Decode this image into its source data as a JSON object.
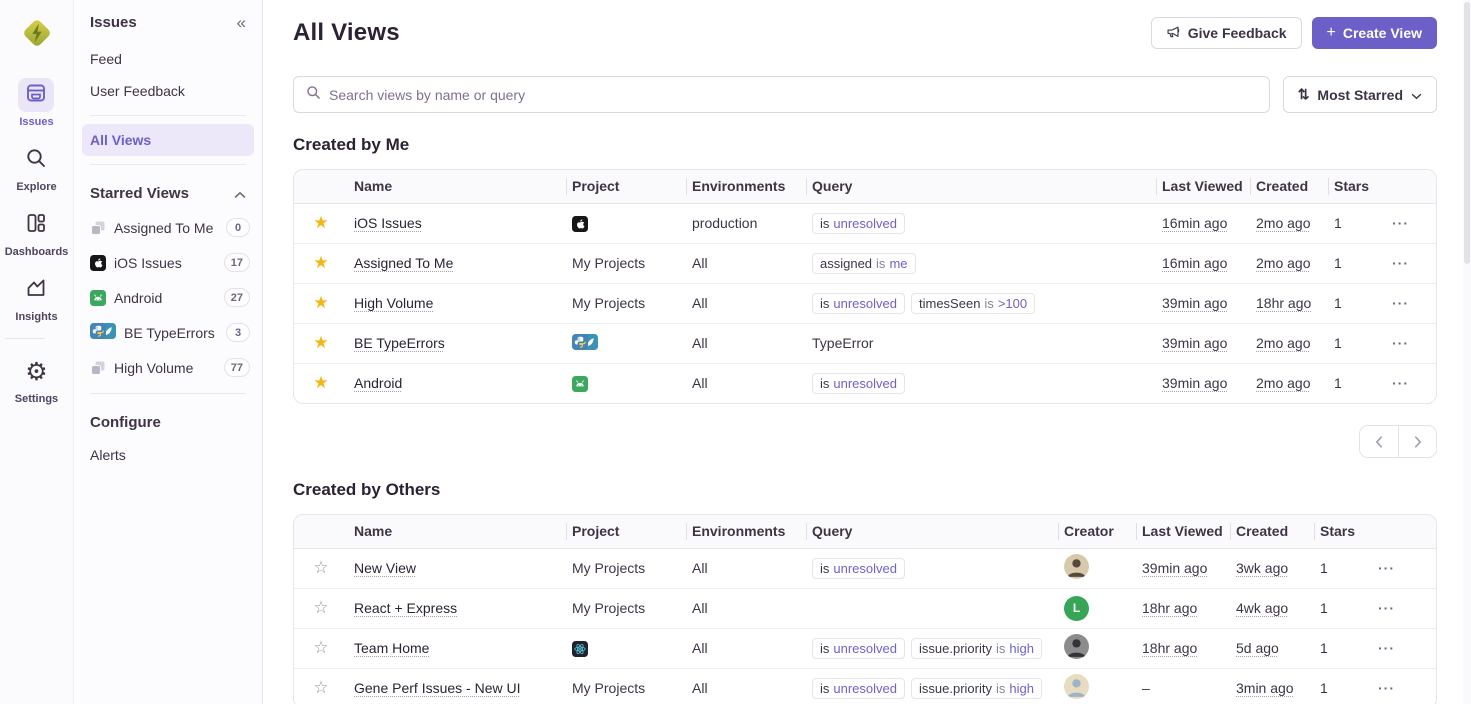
{
  "icons": {
    "collapse": "«",
    "sort": "⇅",
    "star_filled": "★",
    "star_empty": "☆",
    "more": "···",
    "plus": "+",
    "gear": "⚙"
  },
  "colors": {
    "accent": "#6C5FC7",
    "star_gold": "#F2B712",
    "chip_value": "#6E62CC",
    "text_dark": "#2B2233",
    "text_muted": "#71637E"
  },
  "nav_rail": {
    "items": [
      {
        "id": "issues",
        "label": "Issues",
        "active": true
      },
      {
        "id": "explore",
        "label": "Explore",
        "active": false
      },
      {
        "id": "dashboards",
        "label": "Dashboards",
        "active": false
      },
      {
        "id": "insights",
        "label": "Insights",
        "active": false
      },
      {
        "id": "settings",
        "label": "Settings",
        "active": false,
        "divider_before": true
      }
    ]
  },
  "sidebar": {
    "title": "Issues",
    "items_top": [
      "Feed",
      "User Feedback"
    ],
    "active_item": "All Views",
    "starred_header": "Starred Views",
    "starred": [
      {
        "label": "Assigned To Me",
        "count": "0",
        "icon": "layers"
      },
      {
        "label": "iOS Issues",
        "count": "17",
        "icon": "apple"
      },
      {
        "label": "Android",
        "count": "27",
        "icon": "android"
      },
      {
        "label": "BE TypeErrors",
        "count": "3",
        "icon": "python-pair"
      },
      {
        "label": "High Volume",
        "count": "77",
        "icon": "layers"
      }
    ],
    "configure_header": "Configure",
    "configure": [
      "Alerts"
    ]
  },
  "header": {
    "title": "All Views",
    "feedback_label": "Give Feedback",
    "create_label": "Create View"
  },
  "toolbar": {
    "search_placeholder": "Search views by name or query",
    "sort_label": "Most Starred"
  },
  "sections": [
    {
      "title": "Created by Me",
      "has_creator": false,
      "has_pagination": true,
      "columns": {
        "name": "Name",
        "project": "Project",
        "environments": "Environments",
        "query": "Query",
        "creator": "Creator",
        "last_viewed": "Last Viewed",
        "created": "Created",
        "stars": "Stars"
      },
      "rows": [
        {
          "starred": true,
          "name": "iOS Issues",
          "project": {
            "icons": [
              "apple"
            ]
          },
          "environments": "production",
          "query": [
            {
              "parts": [
                [
                  "is",
                  "pk"
                ],
                [
                  "unresolved",
                  "pv"
                ]
              ]
            }
          ],
          "last_viewed": "16min ago",
          "created": "2mo ago",
          "stars": "1"
        },
        {
          "starred": true,
          "name": "Assigned To Me",
          "project": {
            "label": "My Projects"
          },
          "environments": "All",
          "query": [
            {
              "parts": [
                [
                  "assigned",
                  "pk"
                ],
                [
                  "is",
                  "po"
                ],
                [
                  "me",
                  "pv"
                ]
              ]
            }
          ],
          "last_viewed": "16min ago",
          "created": "2mo ago",
          "stars": "1"
        },
        {
          "starred": true,
          "name": "High Volume",
          "project": {
            "label": "My Projects"
          },
          "environments": "All",
          "query": [
            {
              "parts": [
                [
                  "is",
                  "pk"
                ],
                [
                  "unresolved",
                  "pv"
                ]
              ]
            },
            {
              "parts": [
                [
                  "timesSeen",
                  "pk"
                ],
                [
                  "is",
                  "po"
                ],
                [
                  ">100",
                  "pv"
                ]
              ]
            }
          ],
          "last_viewed": "39min ago",
          "created": "18hr ago",
          "stars": "1"
        },
        {
          "starred": true,
          "name": "BE TypeErrors",
          "project": {
            "icons": [
              "python",
              "teal"
            ]
          },
          "environments": "All",
          "query": [
            {
              "plain": "TypeError"
            }
          ],
          "last_viewed": "39min ago",
          "created": "2mo ago",
          "stars": "1"
        },
        {
          "starred": true,
          "name": "Android",
          "project": {
            "icons": [
              "android"
            ]
          },
          "environments": "All",
          "query": [
            {
              "parts": [
                [
                  "is",
                  "pk"
                ],
                [
                  "unresolved",
                  "pv"
                ]
              ]
            }
          ],
          "last_viewed": "39min ago",
          "created": "2mo ago",
          "stars": "1"
        }
      ]
    },
    {
      "title": "Created by Others",
      "has_creator": true,
      "has_pagination": false,
      "columns": {
        "name": "Name",
        "project": "Project",
        "environments": "Environments",
        "query": "Query",
        "creator": "Creator",
        "last_viewed": "Last Viewed",
        "created": "Created",
        "stars": "Stars"
      },
      "rows": [
        {
          "starred": false,
          "name": "New View",
          "project": {
            "label": "My Projects"
          },
          "environments": "All",
          "query": [
            {
              "parts": [
                [
                  "is",
                  "pk"
                ],
                [
                  "unresolved",
                  "pv"
                ]
              ]
            }
          ],
          "creator": {
            "kind": "photo",
            "bg": "#D8C9AC",
            "fg": "#57493A"
          },
          "last_viewed": "39min ago",
          "created": "3wk ago",
          "stars": "1"
        },
        {
          "starred": false,
          "name": "React + Express",
          "project": {
            "label": "My Projects"
          },
          "environments": "All",
          "query": [],
          "creator": {
            "kind": "letter",
            "letter": "L",
            "bg": "#37A556"
          },
          "last_viewed": "18hr ago",
          "created": "4wk ago",
          "stars": "1"
        },
        {
          "starred": false,
          "name": "Team Home",
          "project": {
            "icons": [
              "react"
            ]
          },
          "environments": "All",
          "query": [
            {
              "parts": [
                [
                  "is",
                  "pk"
                ],
                [
                  "unresolved",
                  "pv"
                ]
              ]
            },
            {
              "parts": [
                [
                  "issue.priority",
                  "pk"
                ],
                [
                  "is",
                  "po"
                ],
                [
                  "high",
                  "pv"
                ]
              ]
            }
          ],
          "creator": {
            "kind": "photo",
            "bg": "#8C8C8C",
            "fg": "#33333A"
          },
          "last_viewed": "18hr ago",
          "created": "5d ago",
          "stars": "1"
        },
        {
          "starred": false,
          "name": "Gene Perf Issues - New UI",
          "project": {
            "label": "My Projects"
          },
          "environments": "All",
          "query": [
            {
              "parts": [
                [
                  "is",
                  "pk"
                ],
                [
                  "unresolved",
                  "pv"
                ]
              ]
            },
            {
              "parts": [
                [
                  "issue.priority",
                  "pk"
                ],
                [
                  "is",
                  "po"
                ],
                [
                  "high",
                  "pv"
                ]
              ]
            }
          ],
          "creator": {
            "kind": "photo",
            "bg": "#E7DCC2",
            "fg": "#9FB3C8"
          },
          "last_viewed": "–",
          "created": "3min ago",
          "stars": "1"
        }
      ]
    }
  ]
}
